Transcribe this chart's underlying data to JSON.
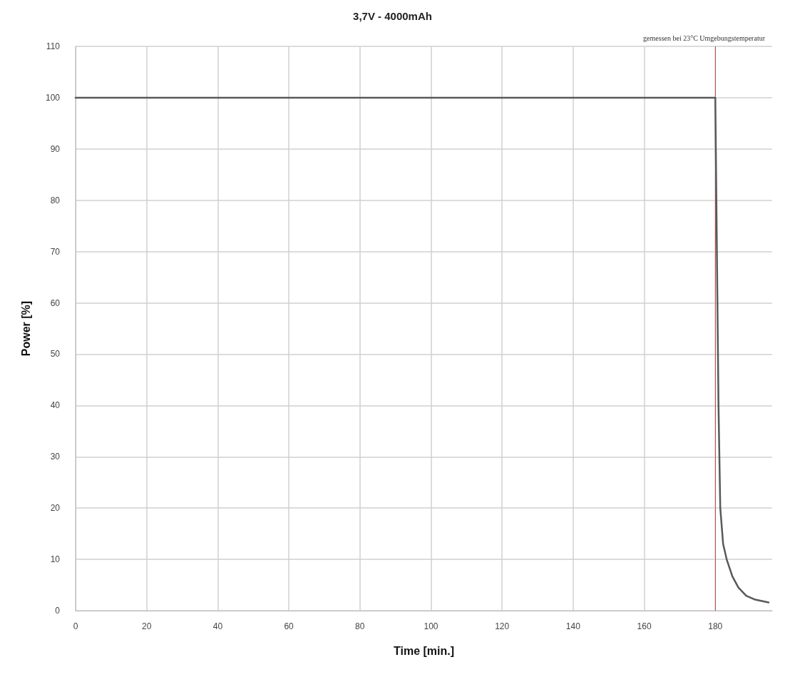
{
  "chart_data": {
    "type": "line",
    "title": "3,7V - 4000mAh",
    "xlabel": "Time [min.]",
    "ylabel": "Power [%]",
    "annotations": [
      "gemessen bei 23°C Umgebungstemperatur"
    ],
    "series": [
      {
        "color": "#595959",
        "x": [
          0,
          180,
          180.3,
          180.6,
          180.9,
          181.4,
          182.2,
          183.2,
          184.8,
          186.5,
          188.7,
          191,
          195
        ],
        "values": [
          100,
          100,
          80,
          60,
          40,
          20,
          13,
          10,
          6.7,
          4.5,
          2.9,
          2.2,
          1.6
        ]
      }
    ],
    "xlim": [
      0,
      196
    ],
    "xticks": [
      0,
      20,
      40,
      60,
      80,
      100,
      120,
      140,
      160,
      180
    ],
    "ylim": [
      0,
      110
    ],
    "yticks": [
      0,
      10,
      20,
      30,
      40,
      50,
      60,
      70,
      80,
      90,
      100,
      110
    ],
    "ref_lines": [
      {
        "axis": "x",
        "value": 180,
        "label": null,
        "color": "#c0504d"
      }
    ],
    "grid": true,
    "marker": "none",
    "line_style": "solid"
  }
}
